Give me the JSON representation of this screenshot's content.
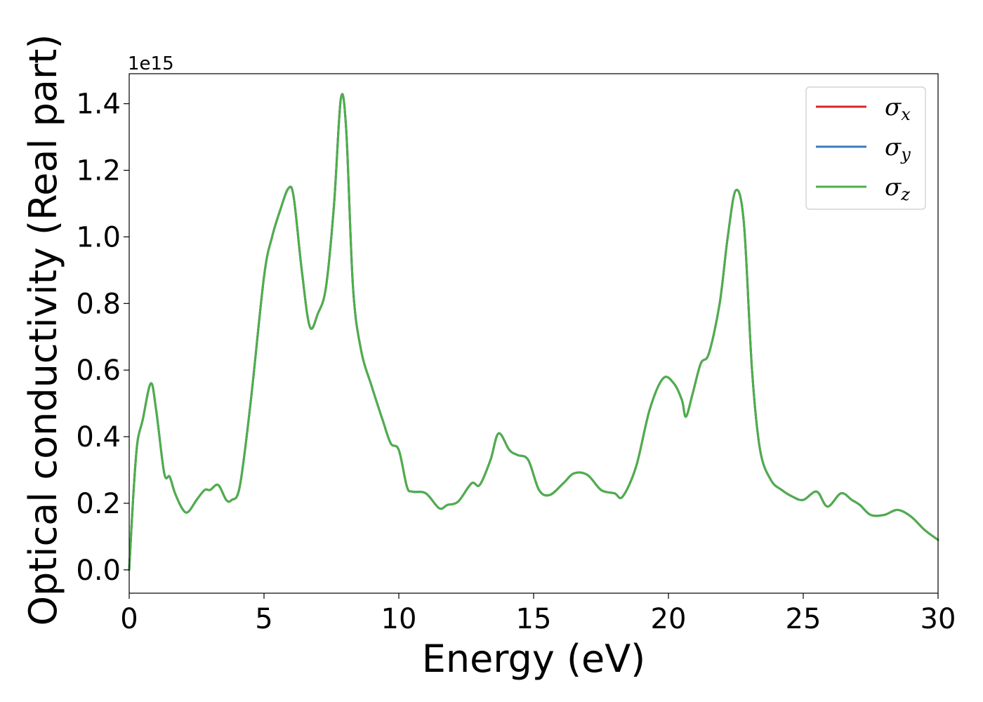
{
  "chart_data": {
    "type": "line",
    "title": "",
    "xlabel": "Energy (eV)",
    "ylabel": "Optical conductivity (Real part)",
    "offset_text": "1e15",
    "xlim": [
      0,
      30
    ],
    "ylim": [
      -0.07,
      1.49
    ],
    "y_scale_multiplier": 1000000000000000.0,
    "xticks": [
      0,
      5,
      10,
      15,
      20,
      25,
      30
    ],
    "xtick_labels": [
      "0",
      "5",
      "10",
      "15",
      "20",
      "25",
      "30"
    ],
    "yticks": [
      0.0,
      0.2,
      0.4,
      0.6,
      0.8,
      1.0,
      1.2,
      1.4
    ],
    "ytick_labels": [
      "0.0",
      "0.2",
      "0.4",
      "0.6",
      "0.8",
      "1.0",
      "1.2",
      "1.4"
    ],
    "grid": false,
    "legend_position": "top-right",
    "x": [
      0.0,
      0.15,
      0.3,
      0.5,
      0.8,
      1.0,
      1.3,
      1.5,
      1.7,
      2.0,
      2.2,
      2.5,
      2.8,
      3.0,
      3.3,
      3.6,
      3.8,
      4.1,
      4.5,
      5.0,
      5.3,
      5.6,
      5.9,
      6.1,
      6.4,
      6.7,
      7.0,
      7.3,
      7.6,
      7.85,
      8.05,
      8.3,
      8.6,
      9.0,
      9.4,
      9.7,
      10.0,
      10.3,
      10.5,
      11.0,
      11.5,
      11.8,
      12.2,
      12.7,
      13.0,
      13.4,
      13.7,
      14.1,
      14.4,
      14.8,
      15.2,
      15.6,
      16.1,
      16.5,
      17.0,
      17.5,
      18.0,
      18.3,
      18.8,
      19.3,
      19.8,
      20.2,
      20.5,
      20.65,
      20.9,
      21.2,
      21.5,
      21.9,
      22.2,
      22.5,
      22.8,
      23.1,
      23.4,
      23.8,
      24.2,
      24.6,
      25.0,
      25.5,
      25.9,
      26.4,
      26.8,
      27.1,
      27.5,
      28.0,
      28.5,
      29.0,
      29.5,
      30.0
    ],
    "series": [
      {
        "name": "σx",
        "color": "#d62728",
        "values": [
          0.0,
          0.22,
          0.38,
          0.45,
          0.56,
          0.48,
          0.29,
          0.28,
          0.23,
          0.18,
          0.175,
          0.21,
          0.24,
          0.24,
          0.255,
          0.21,
          0.21,
          0.25,
          0.5,
          0.88,
          1.0,
          1.08,
          1.145,
          1.12,
          0.9,
          0.73,
          0.77,
          0.85,
          1.1,
          1.415,
          1.32,
          0.85,
          0.66,
          0.55,
          0.45,
          0.38,
          0.36,
          0.25,
          0.235,
          0.23,
          0.185,
          0.195,
          0.205,
          0.26,
          0.255,
          0.33,
          0.41,
          0.36,
          0.345,
          0.33,
          0.24,
          0.225,
          0.26,
          0.29,
          0.285,
          0.24,
          0.23,
          0.22,
          0.31,
          0.48,
          0.575,
          0.56,
          0.51,
          0.46,
          0.53,
          0.62,
          0.65,
          0.8,
          1.0,
          1.14,
          1.04,
          0.6,
          0.36,
          0.27,
          0.24,
          0.22,
          0.21,
          0.235,
          0.19,
          0.23,
          0.21,
          0.195,
          0.165,
          0.165,
          0.18,
          0.16,
          0.12,
          0.09
        ]
      },
      {
        "name": "σy",
        "color": "#3a7bbf",
        "values": [
          0.0,
          0.22,
          0.38,
          0.45,
          0.56,
          0.48,
          0.29,
          0.28,
          0.23,
          0.18,
          0.175,
          0.21,
          0.24,
          0.24,
          0.255,
          0.21,
          0.21,
          0.25,
          0.5,
          0.88,
          1.0,
          1.08,
          1.145,
          1.12,
          0.9,
          0.73,
          0.77,
          0.85,
          1.1,
          1.415,
          1.32,
          0.85,
          0.66,
          0.55,
          0.45,
          0.38,
          0.36,
          0.25,
          0.235,
          0.23,
          0.185,
          0.195,
          0.205,
          0.26,
          0.255,
          0.33,
          0.41,
          0.36,
          0.345,
          0.33,
          0.24,
          0.225,
          0.26,
          0.29,
          0.285,
          0.24,
          0.23,
          0.22,
          0.31,
          0.48,
          0.575,
          0.56,
          0.51,
          0.46,
          0.53,
          0.62,
          0.65,
          0.8,
          1.0,
          1.14,
          1.04,
          0.6,
          0.36,
          0.27,
          0.24,
          0.22,
          0.21,
          0.235,
          0.19,
          0.23,
          0.21,
          0.195,
          0.165,
          0.165,
          0.18,
          0.16,
          0.12,
          0.09
        ]
      },
      {
        "name": "σz",
        "color": "#4daf4a",
        "values": [
          0.0,
          0.22,
          0.38,
          0.45,
          0.56,
          0.48,
          0.29,
          0.28,
          0.23,
          0.18,
          0.175,
          0.21,
          0.24,
          0.24,
          0.255,
          0.21,
          0.21,
          0.25,
          0.5,
          0.88,
          1.0,
          1.08,
          1.145,
          1.12,
          0.9,
          0.73,
          0.77,
          0.85,
          1.1,
          1.415,
          1.32,
          0.85,
          0.66,
          0.55,
          0.45,
          0.38,
          0.36,
          0.25,
          0.235,
          0.23,
          0.185,
          0.195,
          0.205,
          0.26,
          0.255,
          0.33,
          0.41,
          0.36,
          0.345,
          0.33,
          0.24,
          0.225,
          0.26,
          0.29,
          0.285,
          0.24,
          0.23,
          0.22,
          0.31,
          0.48,
          0.575,
          0.56,
          0.51,
          0.46,
          0.53,
          0.62,
          0.65,
          0.8,
          1.0,
          1.14,
          1.04,
          0.6,
          0.36,
          0.27,
          0.24,
          0.22,
          0.21,
          0.235,
          0.19,
          0.23,
          0.21,
          0.195,
          0.165,
          0.165,
          0.18,
          0.16,
          0.12,
          0.09
        ]
      }
    ],
    "legend": [
      {
        "symbol": "σ",
        "sub": "x",
        "color": "#d62728"
      },
      {
        "symbol": "σ",
        "sub": "y",
        "color": "#3a7bbf"
      },
      {
        "symbol": "σ",
        "sub": "z",
        "color": "#4daf4a"
      }
    ]
  }
}
